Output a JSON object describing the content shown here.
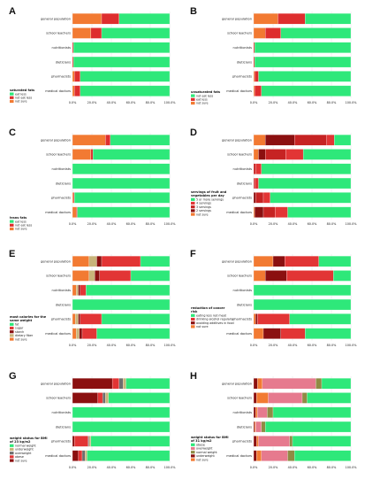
{
  "colors": {
    "green": "#2ee87a",
    "orange": "#f27a32",
    "red": "#de2e2e",
    "darkred": "#8b1010",
    "red2": "#e23535",
    "red3": "#c62323",
    "tan": "#c8b47a",
    "pink": "#e67a8e",
    "grey": "#6e6e6e",
    "lightgreen": "#a8efb2",
    "brown": "#6e4a1e",
    "olive": "#8f8b44",
    "gold": "#d1b14a"
  },
  "chart_data": [
    {
      "type": "bar",
      "orientation": "horizontal",
      "stacked": true,
      "panel_label": "A",
      "categories": [
        "general population",
        "school leachers",
        "nutritionists",
        "dieticians",
        "pharmacists",
        "medical doctors"
      ],
      "xlim": [
        0,
        100
      ],
      "xticks": [
        "0.0%",
        "20.0%",
        "40.0%",
        "60.0%",
        "80.0%",
        "100.0%"
      ],
      "legend_title": "saturated fats",
      "series": [
        {
          "name": "eat less",
          "color": "green",
          "values": [
            52,
            70,
            99,
            99,
            92,
            92
          ]
        },
        {
          "name": "not eat less",
          "color": "red",
          "values": [
            18,
            11,
            1,
            1,
            6,
            6
          ]
        },
        {
          "name": "not sure",
          "color": "orange",
          "values": [
            30,
            19,
            0,
            0,
            2,
            2
          ]
        }
      ],
      "stack_order": [
        2,
        1,
        0
      ]
    },
    {
      "type": "bar",
      "orientation": "horizontal",
      "stacked": true,
      "panel_label": "B",
      "categories": [
        "general population",
        "school leachers",
        "nutritionists",
        "dieticians",
        "pharmacists",
        "medical doctors"
      ],
      "xlim": [
        0,
        100
      ],
      "xticks": [
        "0.0%",
        "20.0%",
        "40.0%",
        "60.0%",
        "80.0%",
        "100.0%"
      ],
      "legend_title": "unsaturated fats",
      "series": [
        {
          "name": "not eat less",
          "color": "green",
          "values": [
            47,
            72,
            99,
            99,
            95,
            92
          ]
        },
        {
          "name": "eat less",
          "color": "red",
          "values": [
            28,
            16,
            1,
            1,
            4,
            7
          ]
        },
        {
          "name": "not sure",
          "color": "orange",
          "values": [
            25,
            12,
            0,
            0,
            1,
            1
          ]
        }
      ],
      "stack_order": [
        2,
        1,
        0
      ]
    },
    {
      "type": "bar",
      "orientation": "horizontal",
      "stacked": true,
      "panel_label": "C",
      "categories": [
        "general population",
        "school leachers",
        "nutritionists",
        "dieticians",
        "pharmacists",
        "medical doctors"
      ],
      "xlim": [
        0,
        100
      ],
      "xticks": [
        "0.0%",
        "20.0%",
        "40.0%",
        "60.0%",
        "80.0%",
        "100.0%"
      ],
      "legend_title": "trans fats",
      "series": [
        {
          "name": "eat less",
          "color": "green",
          "values": [
            61,
            79,
            100,
            100,
            98,
            95
          ]
        },
        {
          "name": "not eat less",
          "color": "red",
          "values": [
            5,
            2,
            0,
            0,
            1,
            1
          ]
        },
        {
          "name": "not sure",
          "color": "orange",
          "values": [
            34,
            19,
            0,
            0,
            1,
            4
          ]
        }
      ],
      "stack_order": [
        2,
        1,
        0
      ]
    },
    {
      "type": "bar",
      "orientation": "horizontal",
      "stacked": true,
      "panel_label": "D",
      "categories": [
        "general population",
        "school leachers",
        "nutritionists",
        "dieticians",
        "pharmacists",
        "medical doctors"
      ],
      "xlim": [
        0,
        100
      ],
      "xticks": [
        "0.0%",
        "20.0%",
        "40.0%",
        "60.0%",
        "80.0%",
        "100.0%"
      ],
      "legend_title": "servings of fruit and vegetables per day",
      "series": [
        {
          "name": "5 or more servings",
          "color": "green",
          "values": [
            17,
            49,
            92,
            95,
            83,
            65
          ]
        },
        {
          "name": "4 servings",
          "color": "red2",
          "values": [
            8,
            18,
            6,
            4,
            7,
            13
          ]
        },
        {
          "name": "3 servings",
          "color": "red3",
          "values": [
            33,
            21,
            2,
            1,
            8,
            12
          ]
        },
        {
          "name": "2 servings",
          "color": "darkred",
          "values": [
            30,
            7,
            0,
            0,
            2,
            9
          ]
        },
        {
          "name": "not sure",
          "color": "orange",
          "values": [
            12,
            5,
            0,
            0,
            0,
            1
          ]
        }
      ],
      "stack_order": [
        4,
        3,
        2,
        1,
        0
      ]
    },
    {
      "type": "bar",
      "orientation": "horizontal",
      "stacked": true,
      "panel_label": "E",
      "categories": [
        "general population",
        "school leachers",
        "nutritionists",
        "dieticians",
        "pharmacists",
        "medical doctors"
      ],
      "xlim": [
        0,
        100
      ],
      "xticks": [
        "0.0%",
        "20.0%",
        "40.0%",
        "60.0%",
        "80.0%",
        "100.0%"
      ],
      "legend_title": "most calories for the same weight",
      "series": [
        {
          "name": "fat",
          "color": "green",
          "values": [
            30,
            40,
            86,
            100,
            70,
            75
          ]
        },
        {
          "name": "sugar",
          "color": "red2",
          "values": [
            40,
            32,
            6,
            0,
            22,
            15
          ]
        },
        {
          "name": "starch",
          "color": "darkred",
          "values": [
            5,
            5,
            2,
            0,
            2,
            3
          ]
        },
        {
          "name": "dietary fiber",
          "color": "tan",
          "values": [
            8,
            6,
            2,
            0,
            3,
            3
          ]
        },
        {
          "name": "not sure",
          "color": "orange",
          "values": [
            17,
            17,
            4,
            0,
            3,
            4
          ]
        }
      ],
      "stack_order": [
        4,
        3,
        2,
        1,
        0
      ]
    },
    {
      "type": "bar",
      "orientation": "horizontal",
      "stacked": true,
      "panel_label": "F",
      "categories": [
        "general population",
        "school leachers",
        "nutritionists",
        "dieticians",
        "pharmacists",
        "medical doctors"
      ],
      "xlim": [
        0,
        100
      ],
      "xticks": [
        "0.0%",
        "20.0%",
        "40.0%",
        "60.0%",
        "80.0%",
        "100.0%"
      ],
      "legend_title": "reduction of cancer risk",
      "series": [
        {
          "name": "eating less red meat",
          "color": "green",
          "values": [
            33,
            18,
            100,
            100,
            63,
            47
          ]
        },
        {
          "name": "drinking alcohol regularly",
          "color": "red2",
          "values": [
            35,
            48,
            0,
            0,
            33,
            25
          ]
        },
        {
          "name": "avoiding additives in food",
          "color": "darkred",
          "values": [
            12,
            22,
            0,
            0,
            2,
            18
          ]
        },
        {
          "name": "not sure",
          "color": "orange",
          "values": [
            20,
            12,
            0,
            0,
            2,
            10
          ]
        }
      ],
      "stack_order": [
        3,
        2,
        1,
        0
      ]
    },
    {
      "type": "bar",
      "orientation": "horizontal",
      "stacked": true,
      "panel_label": "G",
      "categories": [
        "general population",
        "school leachers",
        "nutritionists",
        "dieticians",
        "pharmacists",
        "medical doctors"
      ],
      "xlim": [
        0,
        100
      ],
      "xticks": [
        "0.0%",
        "20.0%",
        "40.0%",
        "60.0%",
        "80.0%",
        "100.0%"
      ],
      "legend_title": "weight status for BMI of 23 kg/m2",
      "series": [
        {
          "name": "normal weight",
          "color": "green",
          "values": [
            45,
            63,
            100,
            100,
            81,
            85
          ]
        },
        {
          "name": "underweight",
          "color": "tan",
          "values": [
            3,
            3,
            0,
            0,
            2,
            2
          ]
        },
        {
          "name": "overweight",
          "color": "grey",
          "values": [
            4,
            3,
            0,
            0,
            1,
            3
          ]
        },
        {
          "name": "obese",
          "color": "red2",
          "values": [
            7,
            5,
            0,
            0,
            14,
            4
          ]
        },
        {
          "name": "not sure",
          "color": "darkred",
          "values": [
            41,
            26,
            0,
            0,
            2,
            6
          ]
        }
      ],
      "stack_order": [
        4,
        3,
        2,
        1,
        0
      ]
    },
    {
      "type": "bar",
      "orientation": "horizontal",
      "stacked": true,
      "panel_label": "H",
      "categories": [
        "general population",
        "school leachers",
        "nutritionists",
        "dieticians",
        "pharmacists",
        "medical doctors"
      ],
      "xlim": [
        0,
        100
      ],
      "xticks": [
        "0.0%",
        "20.0%",
        "40.0%",
        "60.0%",
        "80.0%",
        "100.0%"
      ],
      "legend_title": "weight status for BMI of 31 kg/m2",
      "series": [
        {
          "name": "obese",
          "color": "green",
          "values": [
            30,
            45,
            80,
            88,
            60,
            58
          ]
        },
        {
          "name": "overweight",
          "color": "pink",
          "values": [
            55,
            35,
            10,
            6,
            32,
            27
          ]
        },
        {
          "name": "normal weight",
          "color": "olive",
          "values": [
            6,
            5,
            6,
            4,
            3,
            7
          ]
        },
        {
          "name": "underweight",
          "color": "darkred",
          "values": [
            4,
            3,
            2,
            1,
            3,
            3
          ]
        },
        {
          "name": "not sure",
          "color": "orange",
          "values": [
            5,
            12,
            2,
            1,
            2,
            5
          ]
        }
      ],
      "stack_order": [
        3,
        4,
        1,
        2,
        0
      ]
    }
  ]
}
